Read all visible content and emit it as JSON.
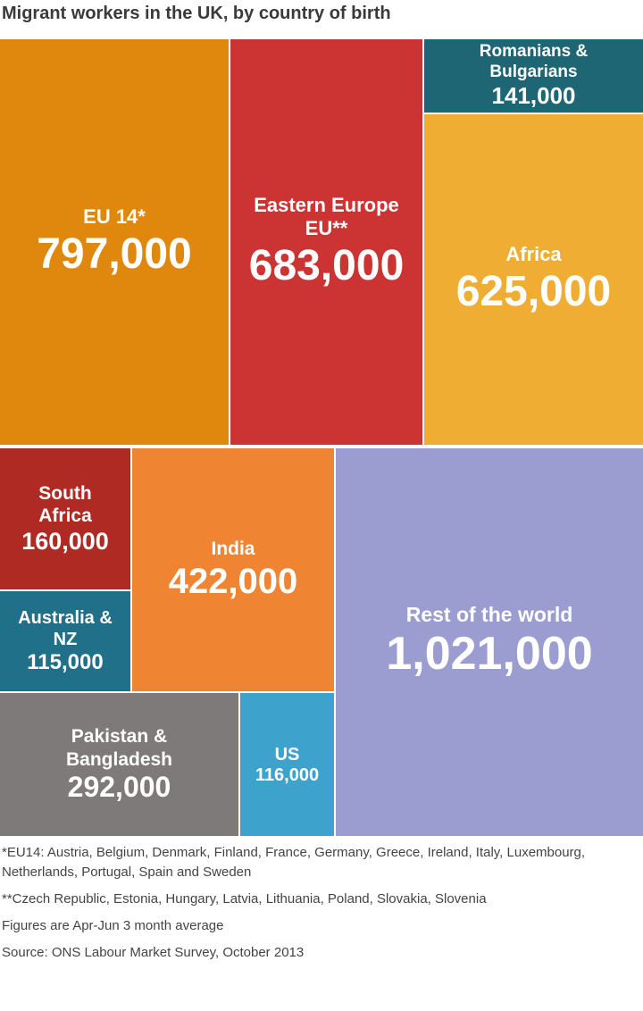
{
  "chart_data": {
    "type": "treemap",
    "title": "Migrant workers in the UK, by country of birth",
    "categories": [
      "EU 14*",
      "Eastern Europe EU**",
      "Romanians & Bulgarians",
      "Africa",
      "South Africa",
      "Australia & NZ",
      "India",
      "Rest of the world",
      "Pakistan & Bangladesh",
      "US"
    ],
    "values": [
      797000,
      683000,
      141000,
      625000,
      160000,
      115000,
      422000,
      1021000,
      292000,
      116000
    ],
    "value_labels": [
      "797,000",
      "683,000",
      "141,000",
      "625,000",
      "160,000",
      "115,000",
      "422,000",
      "1,021,000",
      "292,000",
      "116,000"
    ],
    "colors": [
      "#e0870e",
      "#cc3434",
      "#1f6675",
      "#efae33",
      "#b02a24",
      "#21708a",
      "#ef8532",
      "#9b9ccf",
      "#7f7a7a",
      "#3da3cc"
    ],
    "footnotes": [
      "*EU14: Austria, Belgium, Denmark, Finland, France, Germany, Greece, Ireland, Italy, Luxembourg, Netherlands, Portugal, Spain and Sweden",
      "**Czech Republic, Estonia, Hungary, Latvia, Lithuania, Poland, Slovakia, Slovenia",
      "Figures are Apr-Jun 3 month average",
      "Source: ONS Labour Market Survey, October 2013"
    ]
  }
}
